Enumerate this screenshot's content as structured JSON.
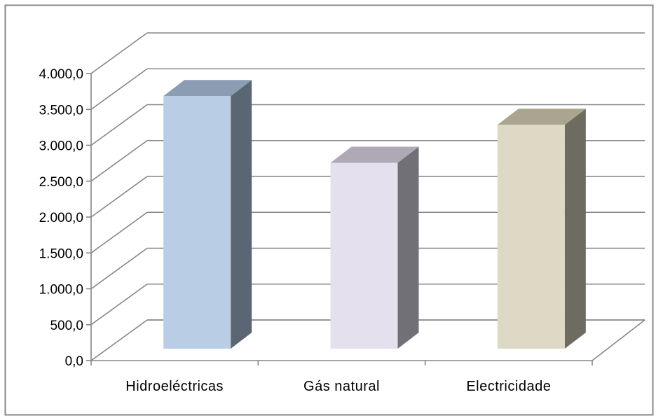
{
  "chart_data": {
    "type": "bar",
    "title": "",
    "xlabel": "",
    "ylabel": "",
    "categories": [
      "Hidroeléctricas",
      "Gás natural",
      "Electricidade"
    ],
    "values": [
      3520,
      2590,
      3120
    ],
    "ylim": [
      0,
      4000
    ],
    "yticks": [
      "0,0",
      "500,0",
      "1.000,0",
      "1.500,0",
      "2.000,0",
      "2.500,0",
      "3.000,0",
      "3.500,0",
      "4.000,0"
    ],
    "grid": true,
    "legend": "none",
    "bar_colors": [
      {
        "front": "#b9cde5",
        "side": "#5b6674",
        "top": "#8b9db2"
      },
      {
        "front": "#e5e0ed",
        "side": "#727077",
        "top": "#aea9b4"
      },
      {
        "front": "#ddd9c4",
        "side": "#6e6c60",
        "top": "#a9a58e"
      }
    ],
    "gridline_color": "#868686",
    "border_color": "#868686"
  }
}
